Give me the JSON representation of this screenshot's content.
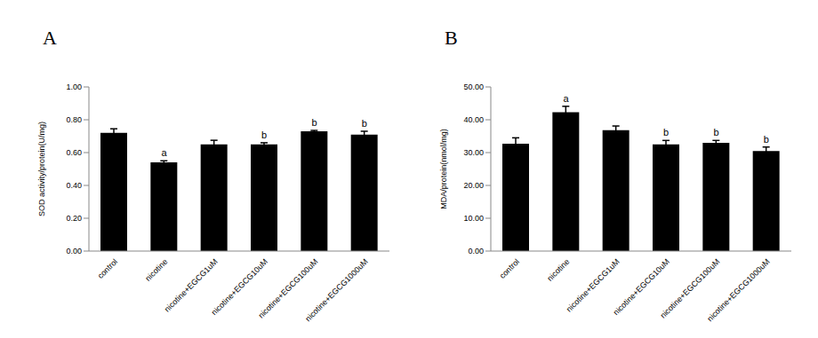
{
  "chart_data": [
    {
      "type": "bar",
      "title": "A",
      "y_label": "SOD activity/protein(U/mg)",
      "categories": [
        "control",
        "nicotine",
        "nicotine+EGCG1uM",
        "nicotine+EGCG10uM",
        "nicotine+EGCG100uM",
        "nicotine+EGCG1000uM"
      ],
      "values": [
        0.72,
        0.54,
        0.65,
        0.65,
        0.73,
        0.71
      ],
      "errors": [
        0.025,
        0.01,
        0.025,
        0.01,
        0.005,
        0.02
      ],
      "letters": [
        null,
        "a",
        null,
        "b",
        "b",
        "b"
      ],
      "color": "#000000",
      "ylim": [
        0,
        1
      ],
      "yticks": [
        {
          "value": 0,
          "label": "0.00"
        },
        {
          "value": 0.2,
          "label": "0.20"
        },
        {
          "value": 0.4,
          "label": "0.40"
        },
        {
          "value": 0.6,
          "label": "0.60"
        },
        {
          "value": 0.8,
          "label": "0.80"
        },
        {
          "value": 1,
          "label": "1.00"
        }
      ],
      "grid": false
    },
    {
      "type": "bar",
      "title": "B",
      "y_label": "MDA/protein(nmol/mg)",
      "categories": [
        "control",
        "nicotine",
        "nicotine+EGCG1uM",
        "nicotine+EGCG10uM",
        "nicotine+EGCG100uM",
        "nicotine+EGCG1000uM"
      ],
      "values": [
        32.7,
        42.3,
        36.8,
        32.5,
        33.0,
        30.5
      ],
      "errors": [
        1.8,
        1.8,
        1.3,
        1.2,
        0.7,
        1.2
      ],
      "letters": [
        null,
        "a",
        null,
        "b",
        "b",
        "b"
      ],
      "color": "#000000",
      "ylim": [
        0,
        50
      ],
      "yticks": [
        {
          "value": 0,
          "label": "0.00"
        },
        {
          "value": 10,
          "label": "10.00"
        },
        {
          "value": 20,
          "label": "20.00"
        },
        {
          "value": 30,
          "label": "30.00"
        },
        {
          "value": 40,
          "label": "40.00"
        },
        {
          "value": 50,
          "label": "50.00"
        }
      ],
      "grid": false
    }
  ]
}
